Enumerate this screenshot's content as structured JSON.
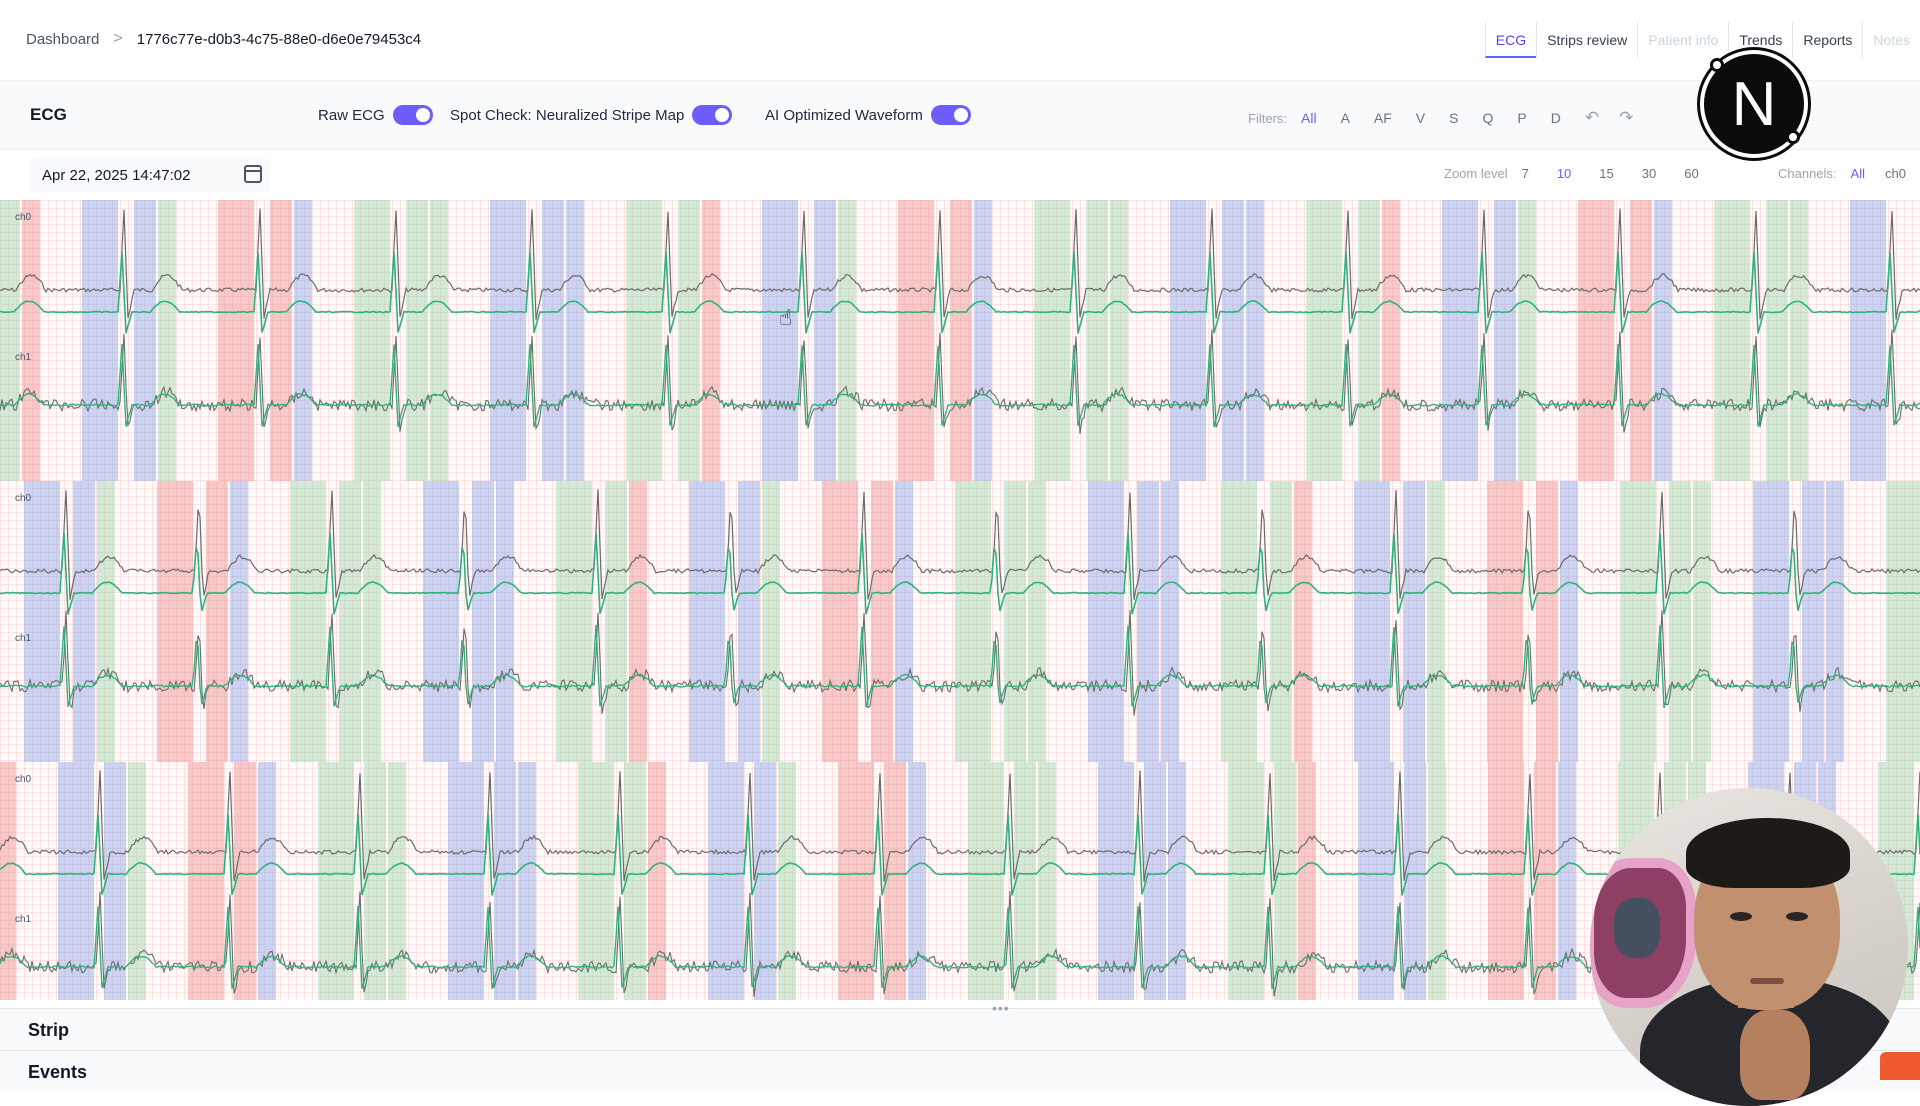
{
  "breadcrumb": {
    "home": "Dashboard",
    "separator": ">",
    "record_id": "1776c77e-d0b3-4c75-88e0-d6e0e79453c4"
  },
  "tabs": [
    {
      "label": "ECG",
      "active": true
    },
    {
      "label": "Strips review"
    },
    {
      "label": "Patient info",
      "muted": true
    },
    {
      "label": "Trends"
    },
    {
      "label": "Reports"
    },
    {
      "label": "Notes",
      "muted": true
    }
  ],
  "logo": {
    "letter": "N"
  },
  "toolbar": {
    "title": "ECG",
    "toggles": [
      {
        "label": "Raw ECG",
        "on": true
      },
      {
        "label": "Spot Check: Neuralized Stripe Map",
        "on": true
      },
      {
        "label": "AI Optimized Waveform",
        "on": true
      }
    ],
    "filters_label": "Filters:",
    "filters": [
      "All",
      "A",
      "AF",
      "V",
      "S",
      "Q",
      "P",
      "D"
    ],
    "filters_active": "All",
    "undo_icon": "undo-icon",
    "redo_icon": "redo-icon"
  },
  "subbar": {
    "date": "Apr 22, 2025 14:47:02",
    "calendar_icon": "calendar-icon",
    "zoom_label": "Zoom level",
    "zoom_levels": [
      "7",
      "10",
      "15",
      "30",
      "60"
    ],
    "zoom_active": "10",
    "channels_label": "Channels:",
    "channels": [
      "All",
      "ch0"
    ],
    "channels_active": "All"
  },
  "strips": [
    {
      "labels": [
        "ch0",
        "ch1"
      ]
    },
    {
      "labels": [
        "ch0",
        "ch1"
      ]
    },
    {
      "labels": [
        "ch0",
        "ch1"
      ]
    }
  ],
  "colors": {
    "accent": "#6366f1",
    "toggle": "#6d5dfc",
    "band_green": "#9bd4a8",
    "band_blue": "#8aa7e8",
    "band_red": "#ec8d8d",
    "trace_raw": "#6b6b6b",
    "trace_ai": "#2fb37a",
    "grid": "#f3c4c4"
  },
  "sections": {
    "strip": "Strip",
    "events": "Events"
  },
  "resize_handle": "•••"
}
